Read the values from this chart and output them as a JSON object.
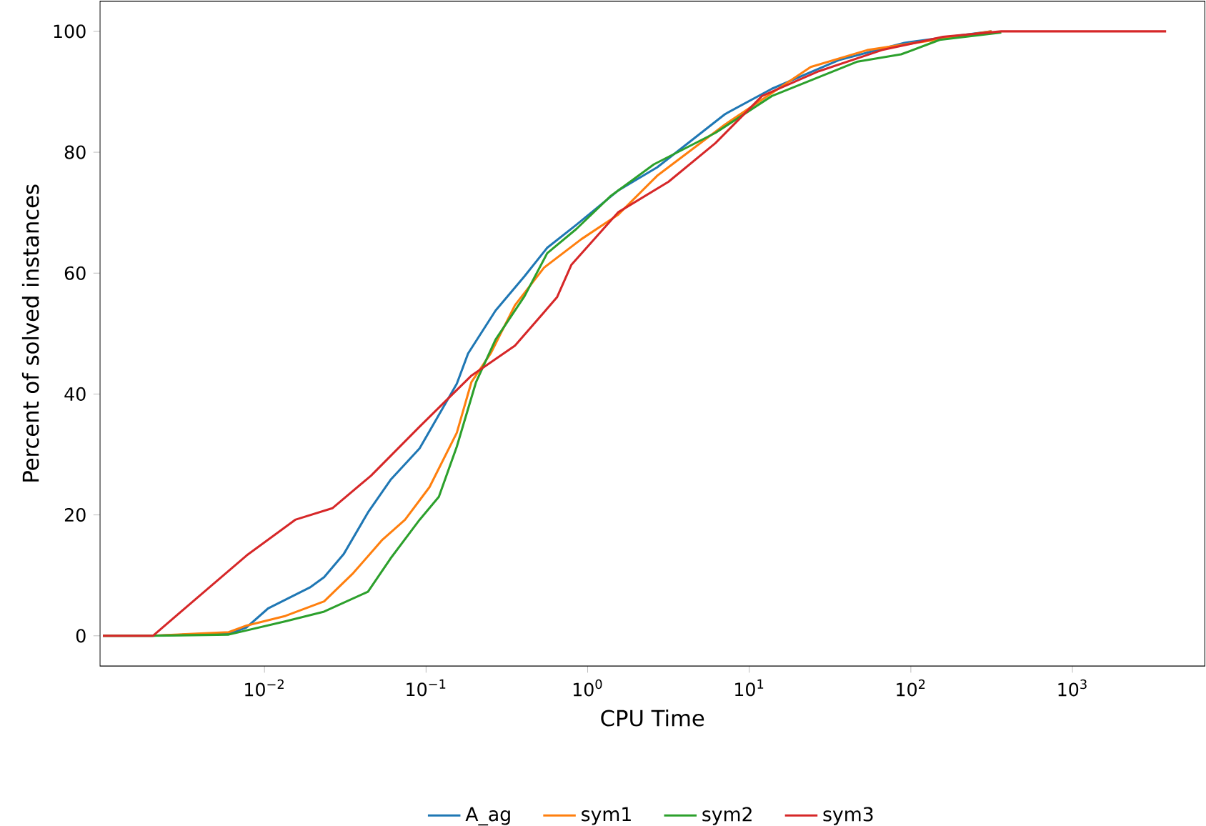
{
  "chart_data": {
    "type": "line",
    "xlabel": "CPU Time",
    "ylabel": "Percent of solved instances",
    "log": "x",
    "xlim": [
      0.00096,
      6600
    ],
    "ylim": [
      -5,
      105
    ],
    "xticks": [
      {
        "value": 0.01,
        "label": "10$^{−2}$"
      },
      {
        "value": 0.1,
        "label": "10$^{−1}$"
      },
      {
        "value": 1,
        "label": "10$^{0}$"
      },
      {
        "value": 10,
        "label": "10$^{1}$"
      },
      {
        "value": 100,
        "label": "10$^{2}$"
      },
      {
        "value": 1000,
        "label": "10$^{3}$"
      }
    ],
    "yticks": [
      0,
      20,
      40,
      60,
      80,
      100
    ],
    "legend": "bottom",
    "marker": "none",
    "line_style": "solid",
    "series": [
      {
        "name": "A_ag",
        "color": "#1f77b4",
        "x": [
          0.001,
          0.002,
          0.0063,
          0.00776,
          0.0105,
          0.0191,
          0.0234,
          0.0309,
          0.0437,
          0.0603,
          0.0912,
          0.155,
          0.182,
          0.269,
          0.407,
          0.562,
          0.851,
          1.55,
          2.69,
          7.08,
          13.8,
          36.3,
          91.2,
          316
        ],
        "values": [
          0,
          0,
          0.5,
          1.4,
          4.5,
          8,
          9.7,
          13.5,
          20.4,
          25.8,
          31,
          41.7,
          46.7,
          53.8,
          59.5,
          64.2,
          68,
          73.7,
          77.5,
          86.3,
          90.5,
          95.3,
          98.1,
          100
        ]
      },
      {
        "name": "sym1",
        "color": "#ff7f0e",
        "x": [
          0.001,
          0.002,
          0.006,
          0.00776,
          0.0135,
          0.0234,
          0.0355,
          0.0537,
          0.0741,
          0.105,
          0.155,
          0.191,
          0.251,
          0.355,
          0.537,
          0.912,
          1.55,
          2.69,
          7.08,
          24,
          53.7,
          316
        ],
        "values": [
          0,
          0,
          0.6,
          1.7,
          3.3,
          5.7,
          10.4,
          15.9,
          19.2,
          24.6,
          33.6,
          42,
          46.7,
          54.7,
          60.9,
          65.6,
          69.7,
          76.1,
          84.6,
          94.1,
          96.9,
          100
        ]
      },
      {
        "name": "sym2",
        "color": "#2ca02c",
        "x": [
          0.001,
          0.002,
          0.006,
          0.0135,
          0.0234,
          0.0437,
          0.0603,
          0.0912,
          0.12,
          0.155,
          0.204,
          0.269,
          0.407,
          0.562,
          0.851,
          1.38,
          2.57,
          6.17,
          13.8,
          46.8,
          87.1,
          151,
          363
        ],
        "values": [
          0,
          0,
          0.2,
          2.4,
          4,
          7.3,
          12.8,
          19.2,
          23,
          31.3,
          42,
          49,
          56.2,
          63.3,
          67.3,
          72.7,
          78,
          83.2,
          89.3,
          95,
          96.2,
          98.6,
          99.8
        ]
      },
      {
        "name": "sym3",
        "color": "#d62728",
        "x": [
          0.001,
          0.00204,
          0.0038,
          0.00776,
          0.0155,
          0.0263,
          0.0457,
          0.0912,
          0.135,
          0.19,
          0.355,
          0.646,
          0.794,
          1.55,
          3.16,
          6.17,
          12,
          26.9,
          66.1,
          158,
          363,
          3800
        ],
        "values": [
          0,
          0,
          6.2,
          13.3,
          19.2,
          21.1,
          26.5,
          34.6,
          39.1,
          43,
          48,
          56,
          61.4,
          70.1,
          75.1,
          81.5,
          89.3,
          93.4,
          96.9,
          99.1,
          100,
          100
        ]
      }
    ]
  }
}
